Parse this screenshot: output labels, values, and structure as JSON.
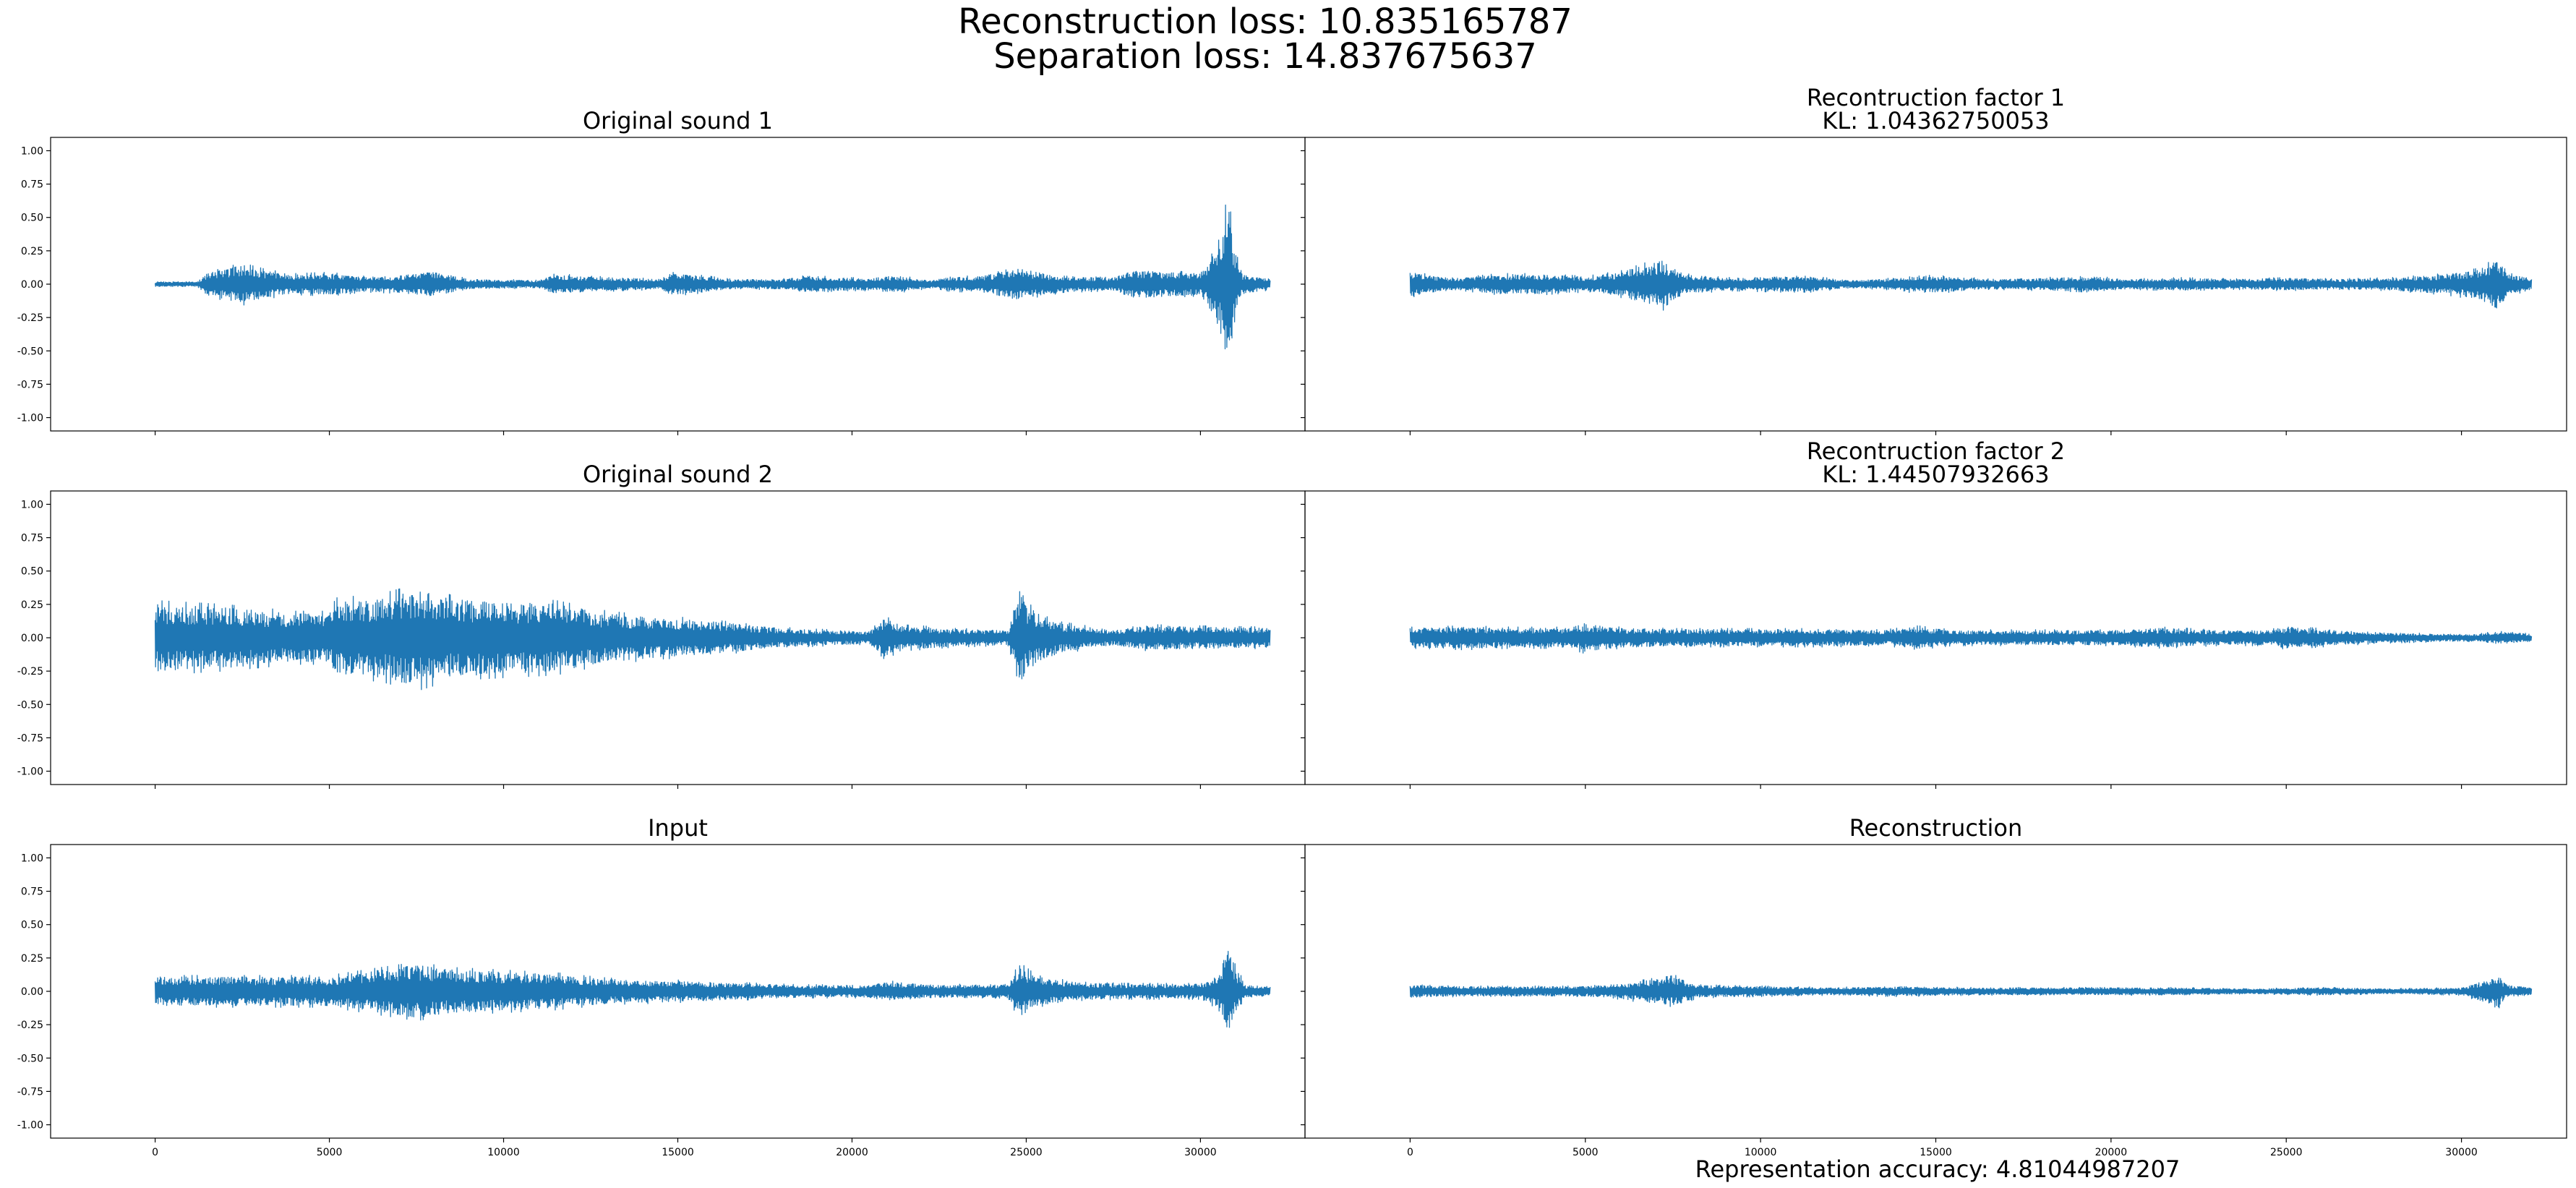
{
  "figure": {
    "suptitle_line1": "Reconstruction loss: 10.835165787",
    "suptitle_line2": "Separation loss: 14.837675637",
    "footer": "Representation accuracy: 4.81044987207"
  },
  "colors": {
    "line": "#1f77b4",
    "frame": "#000000",
    "background": "#ffffff"
  },
  "chart_data": [
    {
      "type": "line",
      "title_line1": "Original sound 1",
      "title_line2": "",
      "xlim": [
        -3000,
        33000
      ],
      "ylim": [
        -1.1,
        1.1
      ],
      "yticks": [
        -1.0,
        -0.75,
        -0.5,
        -0.25,
        0.0,
        0.25,
        0.5,
        0.75,
        1.0
      ],
      "ytick_labels": [
        "-1.00",
        "-0.75",
        "-0.50",
        "-0.25",
        "0.00",
        "0.25",
        "0.50",
        "0.75",
        "1.00"
      ],
      "xticks": [
        0,
        5000,
        10000,
        15000,
        20000,
        25000,
        30000
      ],
      "xtick_labels": [],
      "show_yticks": true,
      "signal_length": 32000,
      "envelope": [
        [
          0,
          0.02
        ],
        [
          1200,
          0.02
        ],
        [
          1500,
          0.09
        ],
        [
          2500,
          0.16
        ],
        [
          3200,
          0.11
        ],
        [
          4000,
          0.08
        ],
        [
          5000,
          0.09
        ],
        [
          6000,
          0.06
        ],
        [
          7000,
          0.07
        ],
        [
          8000,
          0.1
        ],
        [
          9000,
          0.04
        ],
        [
          11000,
          0.03
        ],
        [
          11500,
          0.08
        ],
        [
          12500,
          0.06
        ],
        [
          13500,
          0.05
        ],
        [
          14500,
          0.04
        ],
        [
          14800,
          0.09
        ],
        [
          15600,
          0.07
        ],
        [
          16500,
          0.04
        ],
        [
          18000,
          0.04
        ],
        [
          18800,
          0.07
        ],
        [
          19600,
          0.05
        ],
        [
          20500,
          0.05
        ],
        [
          21200,
          0.07
        ],
        [
          22300,
          0.03
        ],
        [
          22600,
          0.05
        ],
        [
          23800,
          0.07
        ],
        [
          24800,
          0.13
        ],
        [
          25600,
          0.08
        ],
        [
          26500,
          0.06
        ],
        [
          27500,
          0.05
        ],
        [
          28100,
          0.12
        ],
        [
          29000,
          0.1
        ],
        [
          30000,
          0.09
        ],
        [
          30500,
          0.3
        ],
        [
          30800,
          0.7
        ],
        [
          30950,
          0.35
        ],
        [
          31200,
          0.08
        ],
        [
          32000,
          0.05
        ]
      ]
    },
    {
      "type": "line",
      "title_line1": "Recontruction factor 1",
      "title_line2": "KL: 1.04362750053",
      "xlim": [
        -3000,
        33000
      ],
      "ylim": [
        -1.1,
        1.1
      ],
      "yticks": [
        -1.0,
        -0.75,
        -0.5,
        -0.25,
        0.0,
        0.25,
        0.5,
        0.75,
        1.0
      ],
      "ytick_labels": [],
      "xticks": [
        0,
        5000,
        10000,
        15000,
        20000,
        25000,
        30000
      ],
      "xtick_labels": [],
      "show_yticks": false,
      "signal_length": 32000,
      "envelope": [
        [
          0,
          0.1
        ],
        [
          800,
          0.06
        ],
        [
          1500,
          0.05
        ],
        [
          2500,
          0.08
        ],
        [
          3800,
          0.08
        ],
        [
          5000,
          0.06
        ],
        [
          6000,
          0.1
        ],
        [
          6700,
          0.16
        ],
        [
          7200,
          0.2
        ],
        [
          7800,
          0.08
        ],
        [
          9000,
          0.05
        ],
        [
          10500,
          0.06
        ],
        [
          11500,
          0.06
        ],
        [
          12500,
          0.03
        ],
        [
          13500,
          0.04
        ],
        [
          14500,
          0.07
        ],
        [
          15500,
          0.06
        ],
        [
          16500,
          0.04
        ],
        [
          18000,
          0.05
        ],
        [
          19500,
          0.06
        ],
        [
          20500,
          0.04
        ],
        [
          22000,
          0.05
        ],
        [
          23500,
          0.04
        ],
        [
          25000,
          0.05
        ],
        [
          26500,
          0.04
        ],
        [
          28000,
          0.05
        ],
        [
          29500,
          0.08
        ],
        [
          30500,
          0.12
        ],
        [
          31000,
          0.2
        ],
        [
          31400,
          0.08
        ],
        [
          32000,
          0.05
        ]
      ]
    },
    {
      "type": "line",
      "title_line1": "Original sound 2",
      "title_line2": "",
      "xlim": [
        -3000,
        33000
      ],
      "ylim": [
        -1.1,
        1.1
      ],
      "yticks": [
        -1.0,
        -0.75,
        -0.5,
        -0.25,
        0.0,
        0.25,
        0.5,
        0.75,
        1.0
      ],
      "ytick_labels": [
        "-1.00",
        "-0.75",
        "-0.50",
        "-0.25",
        "0.00",
        "0.25",
        "0.50",
        "0.75",
        "1.00"
      ],
      "xticks": [
        0,
        5000,
        10000,
        15000,
        20000,
        25000,
        30000
      ],
      "xtick_labels": [],
      "show_yticks": true,
      "signal_length": 32000,
      "envelope": [
        [
          0,
          0.28
        ],
        [
          2000,
          0.25
        ],
        [
          4000,
          0.2
        ],
        [
          5000,
          0.2
        ],
        [
          5200,
          0.3
        ],
        [
          6500,
          0.33
        ],
        [
          7500,
          0.4
        ],
        [
          8500,
          0.32
        ],
        [
          10000,
          0.3
        ],
        [
          11500,
          0.28
        ],
        [
          13000,
          0.2
        ],
        [
          14500,
          0.16
        ],
        [
          15500,
          0.15
        ],
        [
          16500,
          0.12
        ],
        [
          17500,
          0.09
        ],
        [
          18500,
          0.07
        ],
        [
          19500,
          0.06
        ],
        [
          20500,
          0.05
        ],
        [
          21000,
          0.18
        ],
        [
          21300,
          0.1
        ],
        [
          22000,
          0.09
        ],
        [
          23000,
          0.07
        ],
        [
          24500,
          0.06
        ],
        [
          24800,
          0.42
        ],
        [
          25100,
          0.25
        ],
        [
          26000,
          0.12
        ],
        [
          27500,
          0.06
        ],
        [
          28500,
          0.1
        ],
        [
          30000,
          0.09
        ],
        [
          32000,
          0.08
        ]
      ]
    },
    {
      "type": "line",
      "title_line1": "Recontruction factor 2",
      "title_line2": "KL: 1.44507932663",
      "xlim": [
        -3000,
        33000
      ],
      "ylim": [
        -1.1,
        1.1
      ],
      "yticks": [
        -1.0,
        -0.75,
        -0.5,
        -0.25,
        0.0,
        0.25,
        0.5,
        0.75,
        1.0
      ],
      "ytick_labels": [],
      "xticks": [
        0,
        5000,
        10000,
        15000,
        20000,
        25000,
        30000
      ],
      "xtick_labels": [],
      "show_yticks": false,
      "signal_length": 32000,
      "envelope": [
        [
          0,
          0.08
        ],
        [
          1500,
          0.09
        ],
        [
          3000,
          0.08
        ],
        [
          4500,
          0.08
        ],
        [
          5000,
          0.12
        ],
        [
          6000,
          0.08
        ],
        [
          7500,
          0.07
        ],
        [
          9000,
          0.07
        ],
        [
          10500,
          0.07
        ],
        [
          12000,
          0.07
        ],
        [
          13500,
          0.06
        ],
        [
          14500,
          0.09
        ],
        [
          15500,
          0.06
        ],
        [
          17000,
          0.06
        ],
        [
          18500,
          0.06
        ],
        [
          20000,
          0.06
        ],
        [
          21500,
          0.08
        ],
        [
          23000,
          0.06
        ],
        [
          24500,
          0.06
        ],
        [
          25000,
          0.09
        ],
        [
          26500,
          0.06
        ],
        [
          28000,
          0.04
        ],
        [
          29500,
          0.03
        ],
        [
          30500,
          0.03
        ],
        [
          31000,
          0.05
        ],
        [
          32000,
          0.03
        ]
      ]
    },
    {
      "type": "line",
      "title_line1": "Input",
      "title_line2": "",
      "xlim": [
        -3000,
        33000
      ],
      "ylim": [
        -1.1,
        1.1
      ],
      "yticks": [
        -1.0,
        -0.75,
        -0.5,
        -0.25,
        0.0,
        0.25,
        0.5,
        0.75,
        1.0
      ],
      "ytick_labels": [
        "-1.00",
        "-0.75",
        "-0.50",
        "-0.25",
        "0.00",
        "0.25",
        "0.50",
        "0.75",
        "1.00"
      ],
      "xticks": [
        0,
        5000,
        10000,
        15000,
        20000,
        25000,
        30000
      ],
      "xtick_labels": [
        "0",
        "5000",
        "10000",
        "15000",
        "20000",
        "25000",
        "30000"
      ],
      "show_yticks": true,
      "signal_length": 32000,
      "envelope": [
        [
          0,
          0.12
        ],
        [
          2000,
          0.12
        ],
        [
          3500,
          0.12
        ],
        [
          5000,
          0.12
        ],
        [
          6000,
          0.16
        ],
        [
          7500,
          0.22
        ],
        [
          8500,
          0.18
        ],
        [
          10000,
          0.16
        ],
        [
          11500,
          0.14
        ],
        [
          13000,
          0.1
        ],
        [
          14500,
          0.09
        ],
        [
          16500,
          0.07
        ],
        [
          18500,
          0.05
        ],
        [
          20500,
          0.05
        ],
        [
          21000,
          0.08
        ],
        [
          22500,
          0.05
        ],
        [
          24500,
          0.06
        ],
        [
          24800,
          0.22
        ],
        [
          25300,
          0.12
        ],
        [
          26500,
          0.07
        ],
        [
          28000,
          0.06
        ],
        [
          30000,
          0.06
        ],
        [
          30500,
          0.15
        ],
        [
          30800,
          0.35
        ],
        [
          31000,
          0.2
        ],
        [
          31300,
          0.05
        ],
        [
          32000,
          0.04
        ]
      ]
    },
    {
      "type": "line",
      "title_line1": "Reconstruction",
      "title_line2": "",
      "xlim": [
        -3000,
        33000
      ],
      "ylim": [
        -1.1,
        1.1
      ],
      "yticks": [
        -1.0,
        -0.75,
        -0.5,
        -0.25,
        0.0,
        0.25,
        0.5,
        0.75,
        1.0
      ],
      "ytick_labels": [],
      "xticks": [
        0,
        5000,
        10000,
        15000,
        20000,
        25000,
        30000
      ],
      "xtick_labels": [
        "0",
        "5000",
        "10000",
        "15000",
        "20000",
        "25000",
        "30000"
      ],
      "show_yticks": false,
      "signal_length": 32000,
      "envelope": [
        [
          0,
          0.05
        ],
        [
          1500,
          0.04
        ],
        [
          3000,
          0.04
        ],
        [
          5000,
          0.04
        ],
        [
          6000,
          0.06
        ],
        [
          7000,
          0.1
        ],
        [
          7600,
          0.12
        ],
        [
          8200,
          0.05
        ],
        [
          10000,
          0.04
        ],
        [
          12000,
          0.03
        ],
        [
          14000,
          0.04
        ],
        [
          16000,
          0.03
        ],
        [
          18000,
          0.03
        ],
        [
          20000,
          0.03
        ],
        [
          22000,
          0.03
        ],
        [
          24000,
          0.02
        ],
        [
          26000,
          0.03
        ],
        [
          28000,
          0.02
        ],
        [
          30000,
          0.03
        ],
        [
          30700,
          0.09
        ],
        [
          31000,
          0.15
        ],
        [
          31300,
          0.05
        ],
        [
          32000,
          0.03
        ]
      ]
    }
  ]
}
